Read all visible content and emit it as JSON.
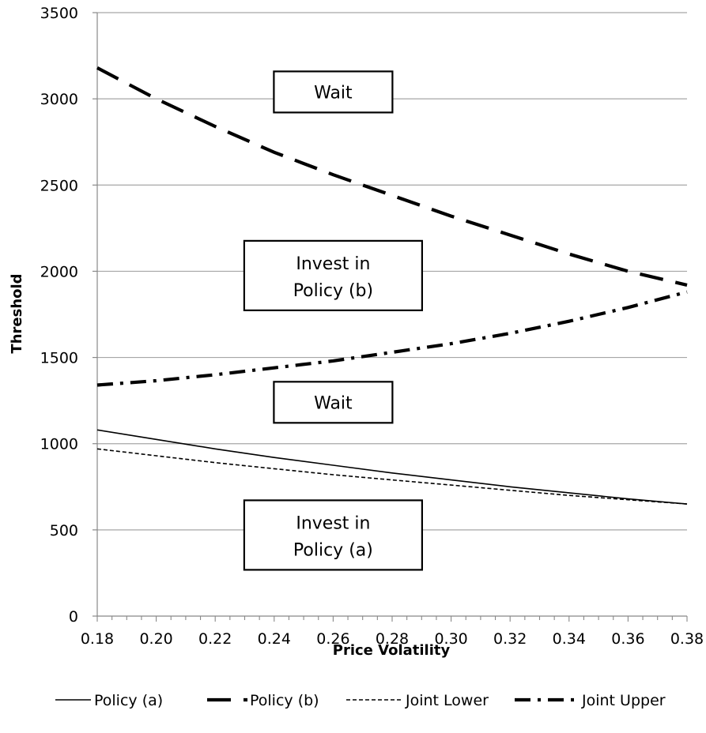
{
  "chart_data": {
    "type": "line",
    "xlabel": "Price Volatility",
    "ylabel": "Threshold",
    "xlim": [
      0.18,
      0.38
    ],
    "ylim": [
      0,
      3500
    ],
    "x_ticks": [
      "0.18",
      "0.20",
      "0.22",
      "0.24",
      "0.26",
      "0.28",
      "0.30",
      "0.32",
      "0.34",
      "0.36",
      "0.38"
    ],
    "y_ticks": [
      "0",
      "500",
      "1000",
      "1500",
      "2000",
      "2500",
      "3000",
      "3500"
    ],
    "grid": "horizontal",
    "legend_position": "bottom",
    "x": [
      0.18,
      0.2,
      0.22,
      0.24,
      0.26,
      0.28,
      0.3,
      0.32,
      0.34,
      0.36,
      0.38
    ],
    "series": [
      {
        "name": "Policy (a)",
        "style": "solid-thin",
        "values": [
          1080,
          1025,
          970,
          920,
          875,
          830,
          790,
          750,
          715,
          680,
          650
        ]
      },
      {
        "name": "Policy (b)",
        "style": "long-dash",
        "values": [
          3180,
          3000,
          2840,
          2690,
          2560,
          2440,
          2320,
          2210,
          2100,
          2000,
          1920
        ]
      },
      {
        "name": "Joint Lower",
        "style": "short-dash",
        "values": [
          970,
          930,
          890,
          855,
          820,
          790,
          760,
          730,
          700,
          675,
          650
        ]
      },
      {
        "name": "Joint Upper",
        "style": "dash-dot",
        "values": [
          1340,
          1365,
          1400,
          1440,
          1480,
          1530,
          1580,
          1640,
          1710,
          1790,
          1880
        ]
      }
    ],
    "annotations": [
      {
        "lines": [
          "Wait"
        ],
        "x": 0.26,
        "y": 3040
      },
      {
        "lines": [
          "Invest in",
          "Policy (b)"
        ],
        "x": 0.26,
        "y": 1975
      },
      {
        "lines": [
          "Wait"
        ],
        "x": 0.26,
        "y": 1240
      },
      {
        "lines": [
          "Invest in",
          "Policy (a)"
        ],
        "x": 0.26,
        "y": 470
      }
    ]
  }
}
